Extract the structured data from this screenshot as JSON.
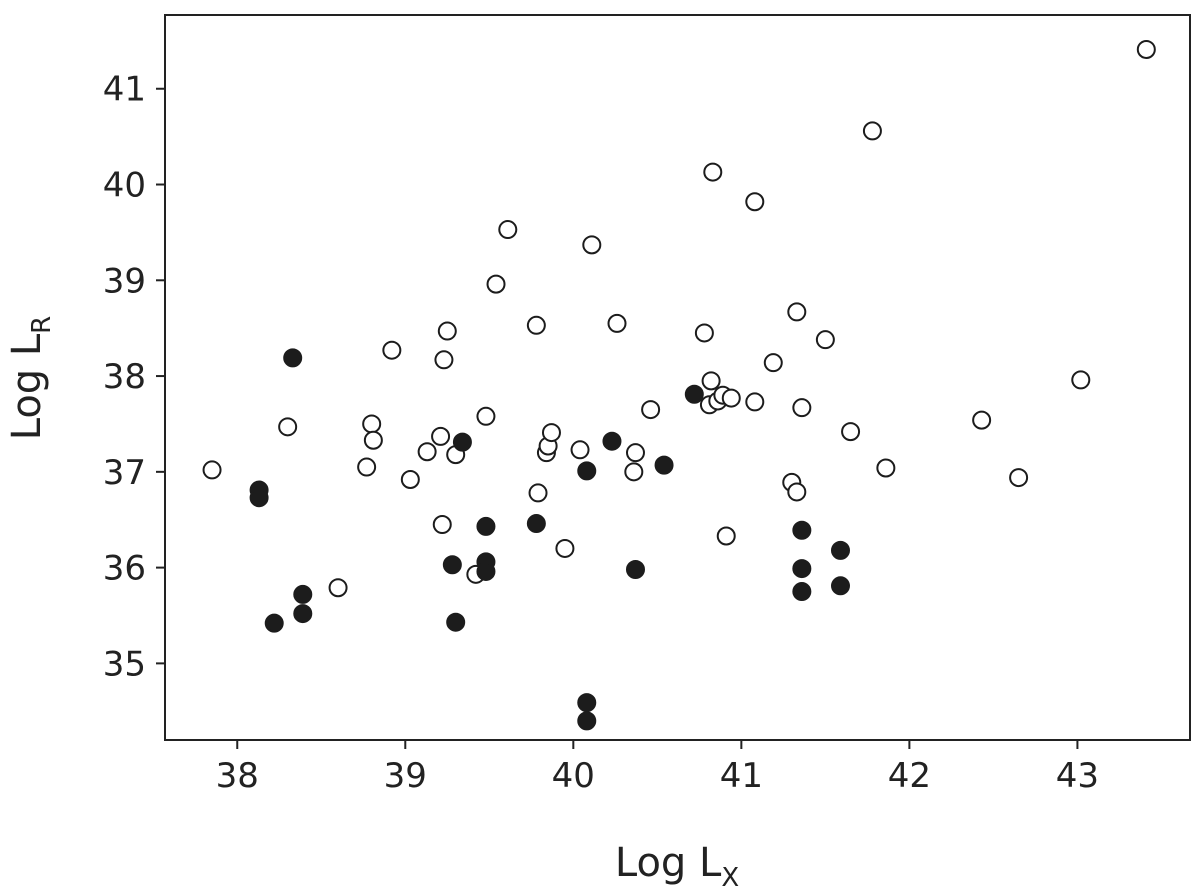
{
  "chart_data": {
    "type": "scatter",
    "title": "",
    "xlabel": {
      "main": "Log L",
      "sub": "X"
    },
    "ylabel": {
      "main": "Log L",
      "sub": "R"
    },
    "xlim": [
      37.57,
      43.67
    ],
    "ylim": [
      34.2,
      41.77
    ],
    "xticks": [
      38,
      39,
      40,
      41,
      42,
      43
    ],
    "yticks": [
      35,
      36,
      37,
      38,
      39,
      40,
      41
    ],
    "grid": false,
    "legend": "none",
    "colors": {
      "filled": "#1c1c1c",
      "open_fill": "#ffffff",
      "edge": "#1c1c1c",
      "axes": "#222222"
    },
    "series": [
      {
        "style": "open",
        "points": [
          [
            37.85,
            37.02
          ],
          [
            38.3,
            37.47
          ],
          [
            38.6,
            35.79
          ],
          [
            38.77,
            37.05
          ],
          [
            38.8,
            37.5
          ],
          [
            38.81,
            37.33
          ],
          [
            38.92,
            38.27
          ],
          [
            39.03,
            36.92
          ],
          [
            39.13,
            37.21
          ],
          [
            39.21,
            37.37
          ],
          [
            39.22,
            36.45
          ],
          [
            39.23,
            38.17
          ],
          [
            39.25,
            38.47
          ],
          [
            39.3,
            37.18
          ],
          [
            39.42,
            35.93
          ],
          [
            39.48,
            37.58
          ],
          [
            39.54,
            38.96
          ],
          [
            39.61,
            39.53
          ],
          [
            39.78,
            38.53
          ],
          [
            39.79,
            36.78
          ],
          [
            39.84,
            37.2
          ],
          [
            39.85,
            37.27
          ],
          [
            39.87,
            37.41
          ],
          [
            39.95,
            36.2
          ],
          [
            40.04,
            37.23
          ],
          [
            40.11,
            39.37
          ],
          [
            40.26,
            38.55
          ],
          [
            40.36,
            37.0
          ],
          [
            40.37,
            37.2
          ],
          [
            40.46,
            37.65
          ],
          [
            40.78,
            38.45
          ],
          [
            40.81,
            37.7
          ],
          [
            40.82,
            37.95
          ],
          [
            40.83,
            40.13
          ],
          [
            40.86,
            37.74
          ],
          [
            40.89,
            37.8
          ],
          [
            40.91,
            36.33
          ],
          [
            40.94,
            37.77
          ],
          [
            41.08,
            39.82
          ],
          [
            41.08,
            37.73
          ],
          [
            41.19,
            38.14
          ],
          [
            41.3,
            36.89
          ],
          [
            41.33,
            36.79
          ],
          [
            41.33,
            38.67
          ],
          [
            41.36,
            37.67
          ],
          [
            41.5,
            38.38
          ],
          [
            41.65,
            37.42
          ],
          [
            41.78,
            40.56
          ],
          [
            41.86,
            37.04
          ],
          [
            42.43,
            37.54
          ],
          [
            42.65,
            36.94
          ],
          [
            43.02,
            37.96
          ],
          [
            43.41,
            41.41
          ]
        ]
      },
      {
        "style": "filled",
        "points": [
          [
            38.13,
            36.81
          ],
          [
            38.13,
            36.73
          ],
          [
            38.22,
            35.42
          ],
          [
            38.33,
            38.19
          ],
          [
            38.39,
            35.72
          ],
          [
            38.39,
            35.52
          ],
          [
            39.28,
            36.03
          ],
          [
            39.3,
            35.43
          ],
          [
            39.34,
            37.31
          ],
          [
            39.48,
            36.43
          ],
          [
            39.48,
            36.06
          ],
          [
            39.48,
            35.96
          ],
          [
            39.78,
            36.46
          ],
          [
            40.08,
            37.01
          ],
          [
            40.08,
            34.59
          ],
          [
            40.08,
            34.4
          ],
          [
            40.23,
            37.32
          ],
          [
            40.37,
            35.98
          ],
          [
            40.54,
            37.07
          ],
          [
            40.72,
            37.81
          ],
          [
            41.36,
            36.39
          ],
          [
            41.36,
            35.99
          ],
          [
            41.36,
            35.75
          ],
          [
            41.59,
            36.18
          ],
          [
            41.59,
            35.81
          ]
        ]
      }
    ]
  }
}
